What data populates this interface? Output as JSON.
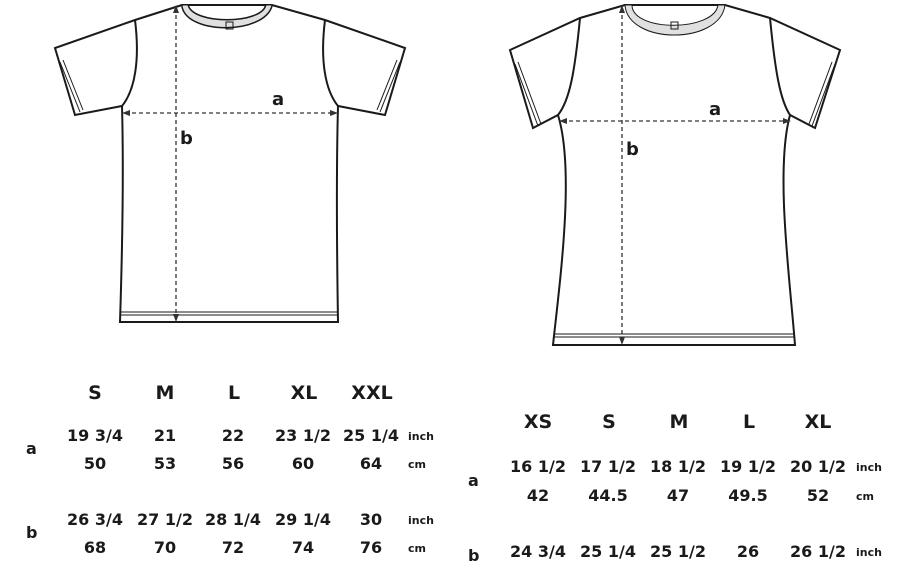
{
  "left_chart": {
    "sizes": [
      "S",
      "M",
      "L",
      "XL",
      "XXL"
    ],
    "rows": [
      {
        "label": "a",
        "inch": [
          "19 3/4",
          "21",
          "22",
          "23 1/2",
          "25 1/4"
        ],
        "cm": [
          "50",
          "53",
          "56",
          "60",
          "64"
        ]
      },
      {
        "label": "b",
        "inch": [
          "26 3/4",
          "27 1/2",
          "28 1/4",
          "29 1/4",
          "30"
        ],
        "cm": [
          "68",
          "70",
          "72",
          "74",
          "76"
        ]
      }
    ],
    "units": {
      "inch": "inch",
      "cm": "cm"
    },
    "diagram": {
      "width_label": "a",
      "length_label": "b"
    }
  },
  "right_chart": {
    "sizes": [
      "XS",
      "S",
      "M",
      "L",
      "XL"
    ],
    "rows": [
      {
        "label": "a",
        "inch": [
          "16 1/2",
          "17 1/2",
          "18 1/2",
          "19 1/2",
          "20 1/2"
        ],
        "cm": [
          "42",
          "44.5",
          "47",
          "49.5",
          "52"
        ]
      },
      {
        "label": "b",
        "inch": [
          "24 3/4",
          "25 1/4",
          "25 1/2",
          "26",
          "26 1/2"
        ],
        "cm": []
      }
    ],
    "units": {
      "inch": "inch",
      "cm": "cm"
    },
    "diagram": {
      "width_label": "a",
      "length_label": "b"
    }
  }
}
